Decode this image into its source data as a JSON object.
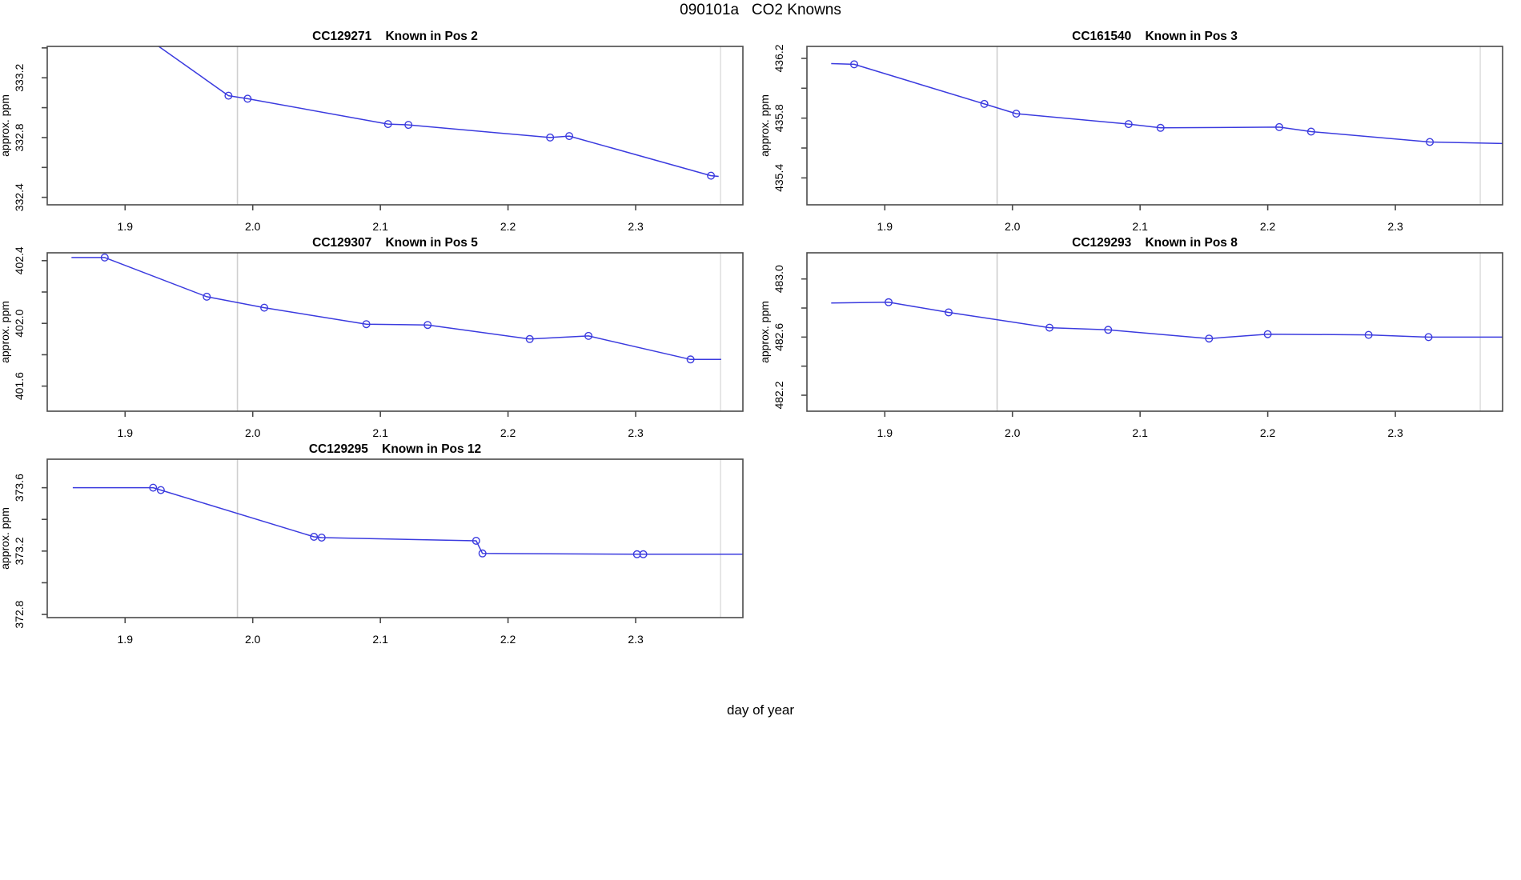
{
  "title": "090101a   CO2 Knowns",
  "outer_xlabel": "day of year",
  "colors": {
    "series": "#3b3bdf",
    "vline_left": "#cfcfcf",
    "vline_right": "#e0e0e0",
    "axis": "#4a4a4a",
    "text": "#000000",
    "background": "#ffffff"
  },
  "layout": {
    "cols": [
      [
        59,
        928
      ],
      [
        1008,
        1877
      ]
    ],
    "rows": [
      [
        58,
        256
      ],
      [
        316,
        514
      ],
      [
        574,
        772
      ]
    ],
    "xtick_label_offset": 27,
    "ytick_label_offset": 30,
    "ylabel_offset": 48,
    "title_offset": 12,
    "tick_len": 7
  },
  "chart_data": [
    {
      "type": "line",
      "id": "CC129271",
      "pos_label": "Known in Pos 2",
      "ylabel": "approx. ppm",
      "grid": [
        0,
        0
      ],
      "xlim": [
        1.839,
        2.384
      ],
      "ylim": [
        332.35,
        333.41
      ],
      "xticks": [
        1.9,
        2.0,
        2.1,
        2.2,
        2.3
      ],
      "xtick_labels": [
        "1.9",
        "2.0",
        "2.1",
        "2.2",
        "2.3"
      ],
      "yticks": [
        332.4,
        332.6,
        332.8,
        333.0,
        333.2,
        333.4
      ],
      "ytick_labels": [
        "332.4",
        "",
        "332.8",
        "",
        "333.2",
        ""
      ],
      "vlines": [
        1.988,
        2.3665
      ],
      "line": [
        [
          1.875,
          333.72
        ],
        [
          1.981,
          333.08
        ],
        [
          1.996,
          333.06
        ],
        [
          2.106,
          332.89
        ],
        [
          2.122,
          332.885
        ],
        [
          2.233,
          332.8
        ],
        [
          2.248,
          332.81
        ],
        [
          2.359,
          332.545
        ],
        [
          2.365,
          332.54
        ]
      ],
      "points": [
        [
          1.981,
          333.08
        ],
        [
          1.996,
          333.06
        ],
        [
          2.106,
          332.89
        ],
        [
          2.122,
          332.885
        ],
        [
          2.233,
          332.8
        ],
        [
          2.248,
          332.81
        ],
        [
          2.359,
          332.545
        ]
      ]
    },
    {
      "type": "line",
      "id": "CC161540",
      "pos_label": "Known in Pos 3",
      "ylabel": "approx. ppm",
      "grid": [
        0,
        1
      ],
      "xlim": [
        1.839,
        2.384
      ],
      "ylim": [
        435.22,
        436.28
      ],
      "xticks": [
        1.9,
        2.0,
        2.1,
        2.2,
        2.3
      ],
      "xtick_labels": [
        "1.9",
        "2.0",
        "2.1",
        "2.2",
        "2.3"
      ],
      "yticks": [
        435.4,
        435.6,
        435.8,
        436.0,
        436.2
      ],
      "ytick_labels": [
        "435.4",
        "",
        "435.8",
        "",
        "436.2"
      ],
      "vlines": [
        1.988,
        2.3665
      ],
      "line": [
        [
          1.858,
          436.165
        ],
        [
          1.876,
          436.16
        ],
        [
          1.978,
          435.895
        ],
        [
          2.003,
          435.83
        ],
        [
          2.091,
          435.76
        ],
        [
          2.116,
          435.735
        ],
        [
          2.209,
          435.74
        ],
        [
          2.234,
          435.71
        ],
        [
          2.327,
          435.64
        ],
        [
          2.384,
          435.63
        ]
      ],
      "points": [
        [
          1.876,
          436.16
        ],
        [
          1.978,
          435.895
        ],
        [
          2.003,
          435.83
        ],
        [
          2.091,
          435.76
        ],
        [
          2.116,
          435.735
        ],
        [
          2.209,
          435.74
        ],
        [
          2.234,
          435.71
        ],
        [
          2.327,
          435.64
        ]
      ]
    },
    {
      "type": "line",
      "id": "CC129307",
      "pos_label": "Known in Pos 5",
      "ylabel": "approx. ppm",
      "grid": [
        1,
        0
      ],
      "xlim": [
        1.839,
        2.384
      ],
      "ylim": [
        401.44,
        402.45
      ],
      "xticks": [
        1.9,
        2.0,
        2.1,
        2.2,
        2.3
      ],
      "xtick_labels": [
        "1.9",
        "2.0",
        "2.1",
        "2.2",
        "2.3"
      ],
      "yticks": [
        401.6,
        401.8,
        402.0,
        402.2,
        402.4
      ],
      "ytick_labels": [
        "401.6",
        "",
        "402.0",
        "",
        "402.4"
      ],
      "vlines": [
        1.988,
        2.3665
      ],
      "line": [
        [
          1.858,
          402.42
        ],
        [
          1.884,
          402.42
        ],
        [
          1.964,
          402.17
        ],
        [
          2.009,
          402.1
        ],
        [
          2.089,
          401.995
        ],
        [
          2.137,
          401.99
        ],
        [
          2.217,
          401.9
        ],
        [
          2.263,
          401.92
        ],
        [
          2.343,
          401.77
        ],
        [
          2.367,
          401.77
        ]
      ],
      "points": [
        [
          1.884,
          402.42
        ],
        [
          1.964,
          402.17
        ],
        [
          2.009,
          402.1
        ],
        [
          2.089,
          401.995
        ],
        [
          2.137,
          401.99
        ],
        [
          2.217,
          401.9
        ],
        [
          2.263,
          401.92
        ],
        [
          2.343,
          401.77
        ]
      ]
    },
    {
      "type": "line",
      "id": "CC129293",
      "pos_label": "Known in Pos 8",
      "ylabel": "approx. ppm",
      "grid": [
        1,
        1
      ],
      "xlim": [
        1.839,
        2.384
      ],
      "ylim": [
        482.09,
        483.18
      ],
      "xticks": [
        1.9,
        2.0,
        2.1,
        2.2,
        2.3
      ],
      "xtick_labels": [
        "1.9",
        "2.0",
        "2.1",
        "2.2",
        "2.3"
      ],
      "yticks": [
        482.2,
        482.4,
        482.6,
        482.8,
        483.0
      ],
      "ytick_labels": [
        "482.2",
        "",
        "482.6",
        "",
        "483.0"
      ],
      "vlines": [
        1.988,
        2.3665
      ],
      "line": [
        [
          1.858,
          482.835
        ],
        [
          1.903,
          482.84
        ],
        [
          1.95,
          482.77
        ],
        [
          2.029,
          482.665
        ],
        [
          2.075,
          482.65
        ],
        [
          2.154,
          482.59
        ],
        [
          2.2,
          482.62
        ],
        [
          2.279,
          482.615
        ],
        [
          2.326,
          482.6
        ],
        [
          2.384,
          482.6
        ]
      ],
      "points": [
        [
          1.903,
          482.84
        ],
        [
          1.95,
          482.77
        ],
        [
          2.029,
          482.665
        ],
        [
          2.075,
          482.65
        ],
        [
          2.154,
          482.59
        ],
        [
          2.2,
          482.62
        ],
        [
          2.279,
          482.615
        ],
        [
          2.326,
          482.6
        ]
      ]
    },
    {
      "type": "line",
      "id": "CC129295",
      "pos_label": "Known in Pos 12",
      "ylabel": "approx. ppm",
      "grid": [
        2,
        0
      ],
      "xlim": [
        1.839,
        2.384
      ],
      "ylim": [
        372.78,
        373.78
      ],
      "xticks": [
        1.9,
        2.0,
        2.1,
        2.2,
        2.3
      ],
      "xtick_labels": [
        "1.9",
        "2.0",
        "2.1",
        "2.2",
        "2.3"
      ],
      "yticks": [
        372.8,
        373.0,
        373.2,
        373.4,
        373.6
      ],
      "ytick_labels": [
        "372.8",
        "",
        "373.2",
        "",
        "373.6"
      ],
      "vlines": [
        1.988,
        2.3665
      ],
      "line": [
        [
          1.859,
          373.6
        ],
        [
          1.922,
          373.6
        ],
        [
          1.928,
          373.585
        ],
        [
          2.048,
          373.29
        ],
        [
          2.054,
          373.285
        ],
        [
          2.175,
          373.265
        ],
        [
          2.18,
          373.185
        ],
        [
          2.301,
          373.18
        ],
        [
          2.306,
          373.18
        ],
        [
          2.384,
          373.18
        ]
      ],
      "points": [
        [
          1.922,
          373.6
        ],
        [
          1.928,
          373.585
        ],
        [
          2.048,
          373.29
        ],
        [
          2.054,
          373.285
        ],
        [
          2.175,
          373.265
        ],
        [
          2.18,
          373.185
        ],
        [
          2.301,
          373.18
        ],
        [
          2.306,
          373.18
        ]
      ]
    }
  ]
}
